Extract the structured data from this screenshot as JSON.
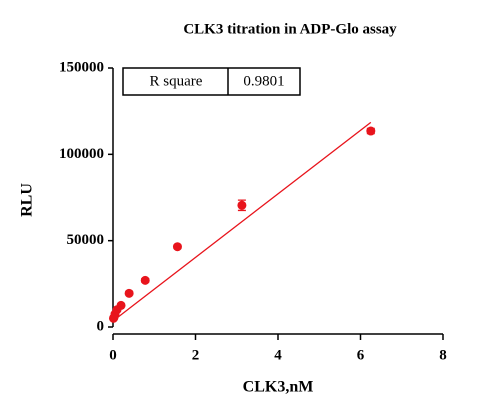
{
  "chart_data": {
    "type": "scatter",
    "title": "CLK3 titration in ADP-Glo assay",
    "x_label": "CLK3,nM",
    "y_label": "RLU",
    "x": [
      6.25,
      3.125,
      1.5625,
      0.781,
      0.391,
      0.195,
      0.098,
      0.049,
      0.024,
      0.012
    ],
    "values": [
      113500,
      70500,
      46500,
      27000,
      19500,
      12500,
      10000,
      7500,
      5500,
      5000
    ],
    "errors": [
      1500,
      3000,
      1000,
      1000,
      800,
      800,
      500,
      500,
      500,
      500
    ],
    "color": "#e8141c",
    "fit": {
      "x": [
        0,
        6.25
      ],
      "values": [
        3500,
        118500
      ]
    },
    "annotation": {
      "label": "R square",
      "value": "0.9801"
    },
    "xlim": [
      0,
      8
    ],
    "xticks": [
      0,
      2,
      4,
      6,
      8
    ],
    "ylim": [
      0,
      150000
    ],
    "yticks": [
      0,
      50000,
      100000,
      150000
    ]
  }
}
